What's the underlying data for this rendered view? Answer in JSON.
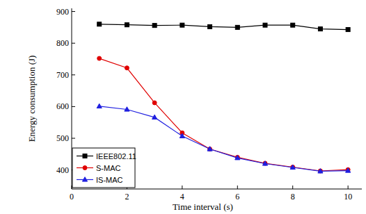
{
  "chart_data": {
    "type": "line",
    "x_label": "Time interval (s)",
    "y_label": "Energy consumption (J)",
    "x": [
      1,
      2,
      3,
      4,
      5,
      6,
      7,
      8,
      9,
      10
    ],
    "series": [
      {
        "name": "IEEE802.11",
        "color": "#000000",
        "marker": "square",
        "line_style": "solid",
        "values": [
          860,
          858,
          856,
          857,
          852,
          850,
          857,
          857,
          845,
          843
        ]
      },
      {
        "name": "S-MAC",
        "color": "#e00000",
        "marker": "circle",
        "line_style": "solid",
        "values": [
          752,
          722,
          612,
          517,
          466,
          440,
          421,
          409,
          397,
          401
        ]
      },
      {
        "name": "IS-MAC",
        "color": "#1f1fe0",
        "marker": "triangle",
        "line_style": "solid",
        "values": [
          601,
          591,
          566,
          507,
          466,
          438,
          420,
          408,
          396,
          398
        ]
      }
    ],
    "xlim": [
      0,
      10.5
    ],
    "xticks": [
      0,
      2,
      4,
      6,
      8,
      10
    ],
    "ylim": [
      340,
      910
    ],
    "yticks": [
      400,
      500,
      600,
      700,
      800,
      900
    ],
    "grid": false,
    "legend": "lower left"
  }
}
